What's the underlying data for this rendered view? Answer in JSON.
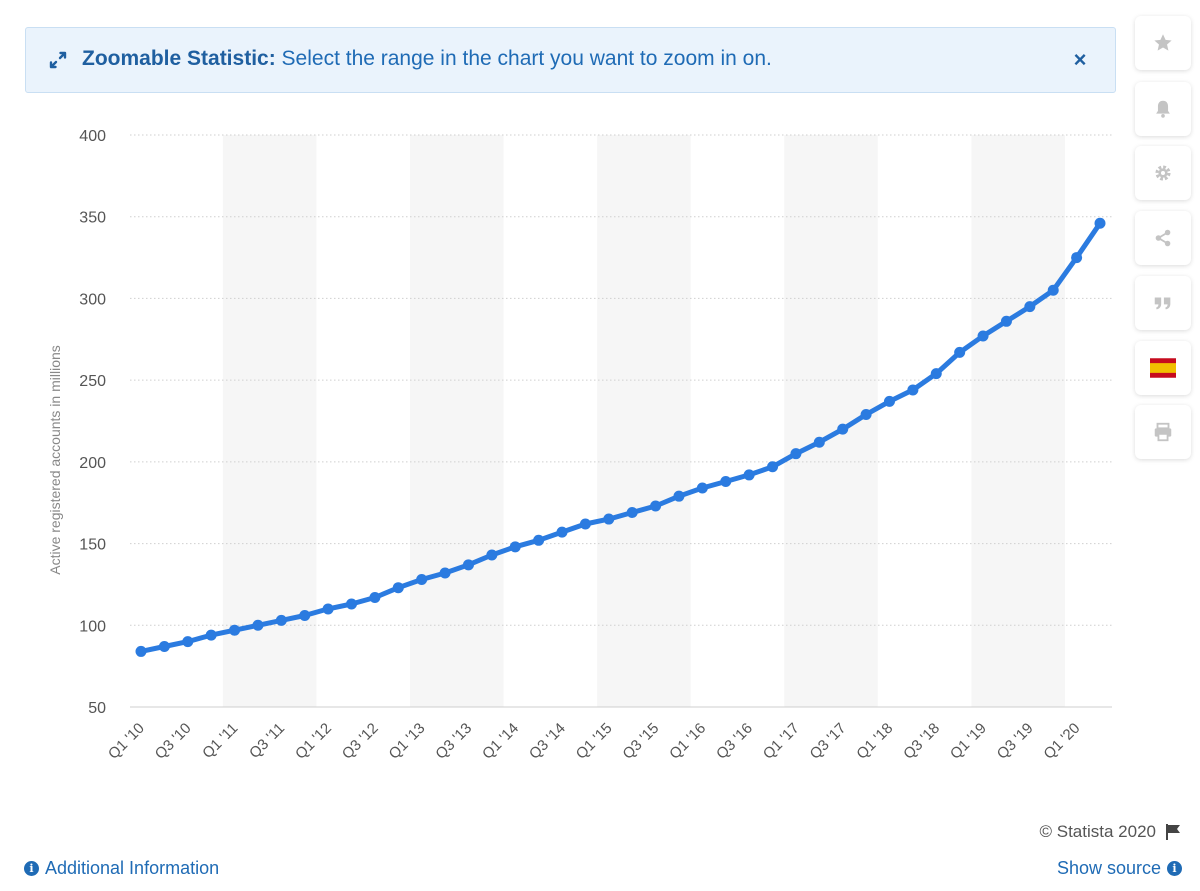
{
  "banner": {
    "title": "Zoomable Statistic:",
    "text": " Select the range in the chart you want to zoom in on.",
    "close_label": "×",
    "icon": "expand-arrows-icon"
  },
  "toolbar": [
    {
      "name": "favorite-star-icon"
    },
    {
      "name": "notification-bell-icon"
    },
    {
      "name": "settings-gear-icon"
    },
    {
      "name": "share-icon"
    },
    {
      "name": "citation-quote-icon"
    },
    {
      "name": "language-flag-spain-icon"
    },
    {
      "name": "print-icon"
    }
  ],
  "footer": {
    "copyright": "© Statista 2020",
    "additional_info": "Additional Information",
    "show_source": "Show source"
  },
  "colors": {
    "line": "#2b7be0",
    "link": "#1f6bb5",
    "banner_bg": "#eaf3fc",
    "band": "#f6f6f6"
  },
  "chart_data": {
    "type": "line",
    "ylabel": "Active registered accounts in millions",
    "xlabel": "",
    "ylim": [
      50,
      400
    ],
    "yticks": [
      50,
      100,
      150,
      200,
      250,
      300,
      350,
      400
    ],
    "grid": true,
    "x": [
      "Q1 '10",
      "Q2 '10",
      "Q3 '10",
      "Q4 '10",
      "Q1 '11",
      "Q2 '11",
      "Q3 '11",
      "Q4 '11",
      "Q1 '12",
      "Q2 '12",
      "Q3 '12",
      "Q4 '12",
      "Q1 '13",
      "Q2 '13",
      "Q3 '13",
      "Q4 '13",
      "Q1 '14",
      "Q2 '14",
      "Q3 '14",
      "Q4 '14",
      "Q1 '15",
      "Q2 '15",
      "Q3 '15",
      "Q4 '15",
      "Q1 '16",
      "Q2 '16",
      "Q3 '16",
      "Q4 '16",
      "Q1 '17",
      "Q2 '17",
      "Q3 '17",
      "Q4 '17",
      "Q1 '18",
      "Q2 '18",
      "Q3 '18",
      "Q4 '18",
      "Q1 '19",
      "Q2 '19",
      "Q3 '19",
      "Q4 '19",
      "Q1 '20",
      "Q2 '20"
    ],
    "tick_labels": [
      "Q1 '10",
      "Q3 '10",
      "Q1 '11",
      "Q3 '11",
      "Q1 '12",
      "Q3 '12",
      "Q1 '13",
      "Q3 '13",
      "Q1 '14",
      "Q3 '14",
      "Q1 '15",
      "Q3 '15",
      "Q1 '16",
      "Q3 '16",
      "Q1 '17",
      "Q3 '17",
      "Q1 '18",
      "Q3 '18",
      "Q1 '19",
      "Q3 '19",
      "Q1 '20"
    ],
    "series": [
      {
        "values": [
          84,
          87,
          90,
          94,
          97,
          100,
          103,
          106,
          110,
          113,
          117,
          123,
          128,
          132,
          137,
          143,
          148,
          152,
          157,
          162,
          165,
          169,
          173,
          179,
          184,
          188,
          192,
          197,
          205,
          212,
          220,
          229,
          237,
          244,
          254,
          267,
          277,
          286,
          295,
          305,
          325,
          346
        ]
      }
    ]
  }
}
